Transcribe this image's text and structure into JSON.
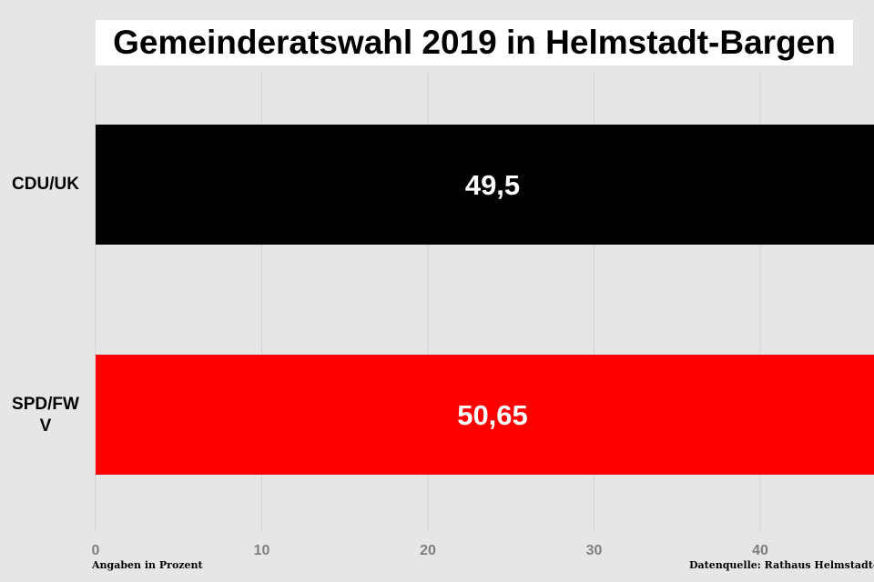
{
  "chart_data": {
    "type": "bar",
    "orientation": "horizontal",
    "title": "Gemeinderatswahl 2019 in Helmstadt-Bargen",
    "categories": [
      "CDU/UK",
      "SPD/FW V"
    ],
    "category_labels": [
      "CDU/UK",
      "SPD/FW\nV"
    ],
    "values": [
      49.5,
      50.65
    ],
    "value_labels": [
      "49,5",
      "50,65"
    ],
    "bar_colors": [
      "#000000",
      "#ff0000"
    ],
    "xticks": [
      0,
      10,
      20,
      30,
      40
    ],
    "xlim": [
      0,
      47
    ],
    "grid": true,
    "xlabel": "",
    "ylabel": ""
  },
  "footer": {
    "left_note": "Angaben in Prozent",
    "right_note": "Datenquelle: Rathaus Helmstadt-Bargen"
  },
  "colors": {
    "background": "#e6e6e6",
    "gridline": "#d4d4d4",
    "tick_label": "#7f7f7f"
  }
}
